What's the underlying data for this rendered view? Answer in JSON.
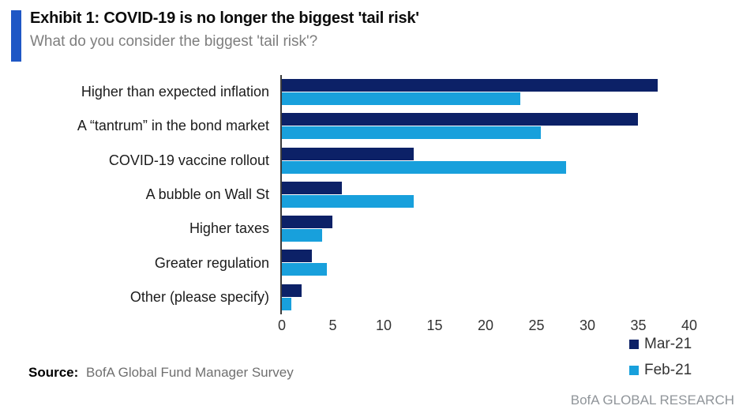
{
  "header": {
    "title": "Exhibit 1: COVID-19 is no longer the biggest 'tail risk'",
    "subtitle": "What do you consider the biggest 'tail risk'?"
  },
  "chart_data": {
    "type": "bar",
    "orientation": "horizontal",
    "title": "Exhibit 1: COVID-19 is no longer the biggest 'tail risk'",
    "subtitle": "What do you consider the biggest 'tail risk'?",
    "categories": [
      "Higher than expected inflation",
      "A “tantrum” in the bond market",
      "COVID-19 vaccine rollout",
      "A bubble on Wall St",
      "Higher taxes",
      "Greater regulation",
      "Other (please specify)"
    ],
    "series": [
      {
        "name": "Mar-21",
        "color": "#0c2167",
        "values": [
          37,
          35,
          13,
          6,
          5,
          3,
          2
        ]
      },
      {
        "name": "Feb-21",
        "color": "#18a0dc",
        "values": [
          23.5,
          25.5,
          28,
          13,
          4,
          4.5,
          1
        ]
      }
    ],
    "xlim": [
      0,
      40
    ],
    "xticks": [
      0,
      5,
      10,
      15,
      20,
      25,
      30,
      35,
      40
    ],
    "xlabel": "",
    "ylabel": "",
    "grid": false,
    "legend_position": "inside-right"
  },
  "footer": {
    "source_label": "Source:",
    "source_text": "BofA Global Fund Manager Survey",
    "brand": "BofA GLOBAL RESEARCH"
  },
  "colors": {
    "accent_bar": "#1f57c5",
    "mar21_bar": "#0c2167",
    "feb21_bar": "#18a0dc",
    "axis_line": "#3c3c3c"
  }
}
